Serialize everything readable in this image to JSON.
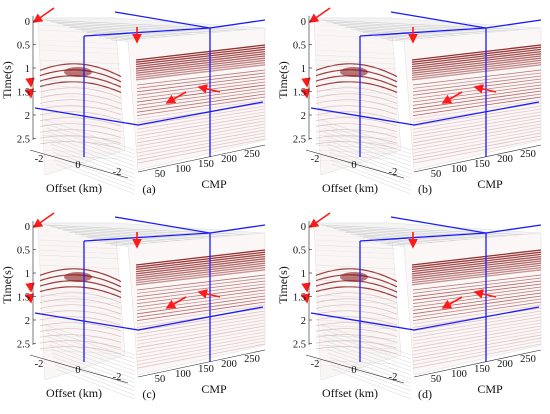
{
  "panels": [
    {
      "id": "a",
      "label": "(a)"
    },
    {
      "id": "b",
      "label": "(b)"
    },
    {
      "id": "c",
      "label": "(c)"
    },
    {
      "id": "d",
      "label": "(d)"
    }
  ],
  "axes": {
    "time_label": "Time(s)",
    "offset_label": "Offset (km)",
    "cmp_label": "CMP",
    "time_ticks": [
      "0",
      "0.5",
      "1",
      "1.5",
      "2",
      "2.5"
    ],
    "offset_ticks": [
      "-2",
      "0",
      "-2"
    ],
    "cmp_ticks": [
      "50",
      "100",
      "150",
      "200",
      "250"
    ]
  },
  "colors": {
    "slice_lines": "#1a1aff",
    "arrows": "#ff1a1a",
    "seismic_strong": "#8b1a1a",
    "seismic_weak": "#d9b3b3",
    "background": "#ffffff"
  }
}
